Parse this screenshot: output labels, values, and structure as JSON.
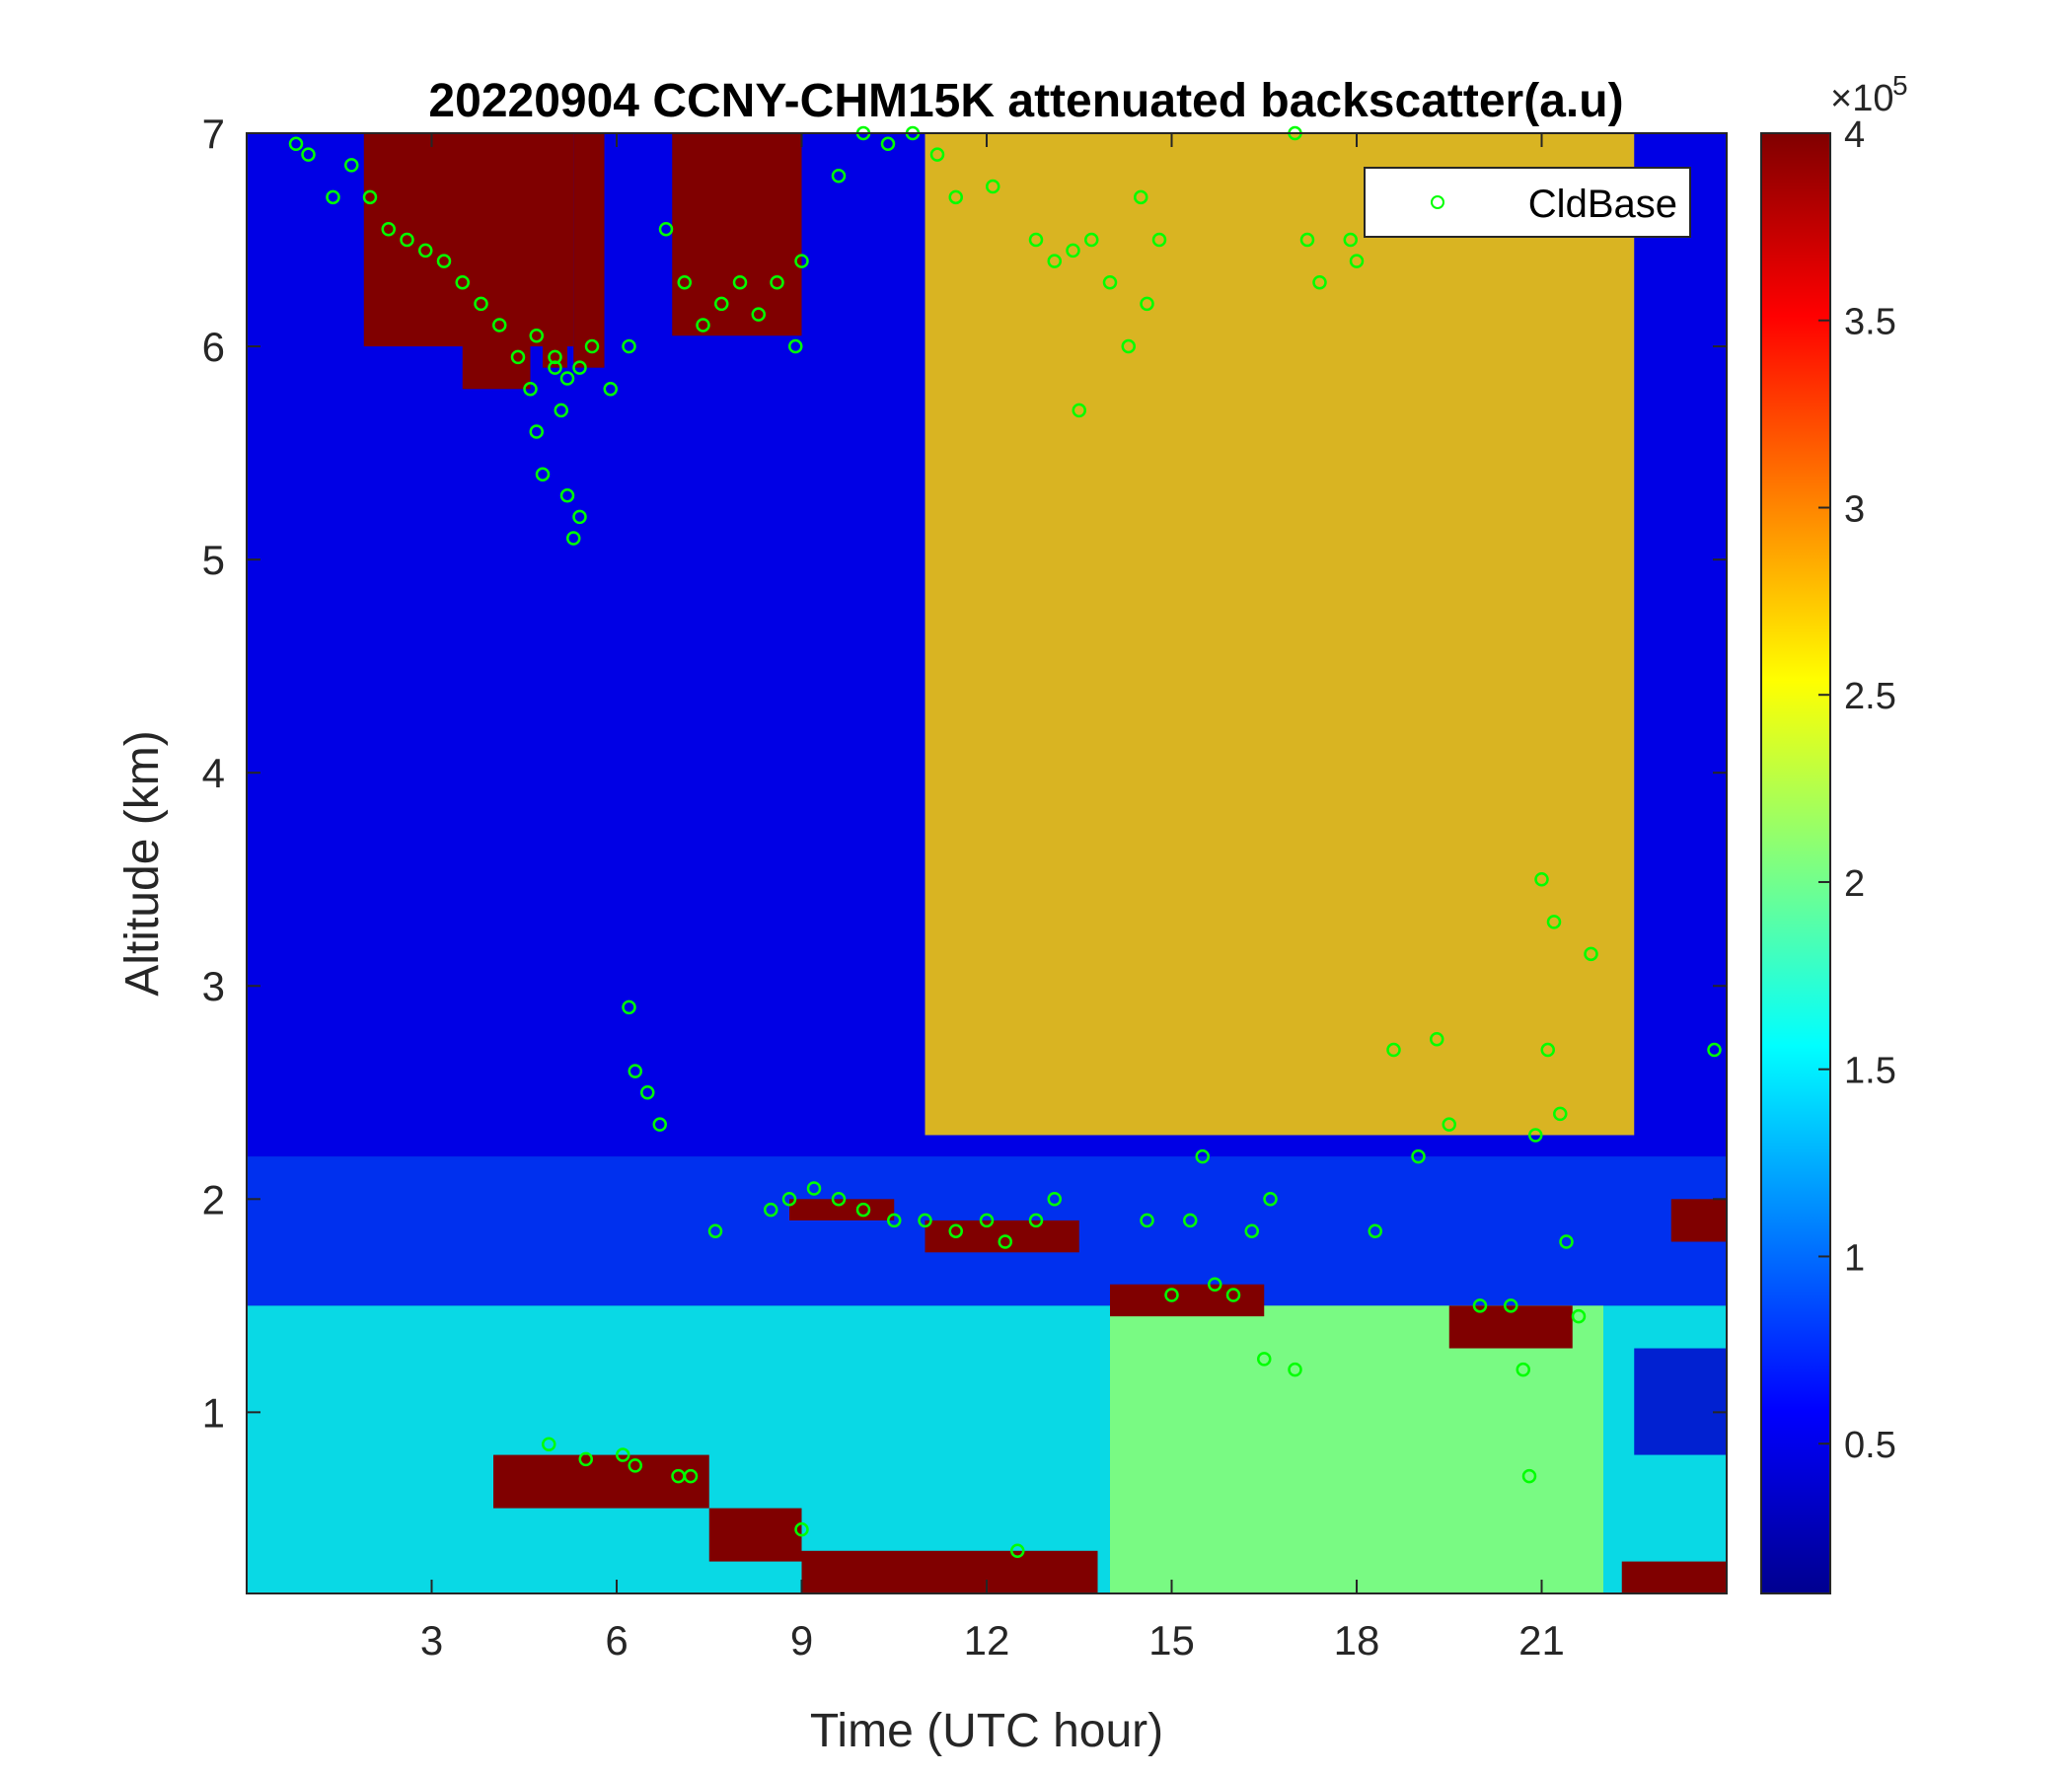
{
  "chart_data": {
    "type": "heatmap",
    "title": "20220904 CCNY-CHM15K attenuated backscatter(a.u)",
    "xlabel": "Time (UTC hour)",
    "ylabel": "Altitude (km)",
    "xlim": [
      0,
      24
    ],
    "ylim": [
      0.15,
      7
    ],
    "xticks": [
      3,
      6,
      9,
      12,
      15,
      18,
      21
    ],
    "xtick_labels": [
      "3",
      "6",
      "9",
      "12",
      "15",
      "18",
      "21"
    ],
    "yticks": [
      1,
      2,
      3,
      4,
      5,
      6,
      7
    ],
    "ytick_labels": [
      "1",
      "2",
      "3",
      "4",
      "5",
      "6",
      "7"
    ],
    "colorbar": {
      "label": "",
      "multiplier": "×10",
      "exponent": "5",
      "range": [
        0.1,
        4
      ],
      "ticks": [
        0.5,
        1,
        1.5,
        2,
        2.5,
        3,
        3.5,
        4
      ],
      "tick_labels": [
        "0.5",
        "1",
        "1.5",
        "2",
        "2.5",
        "3",
        "3.5",
        "4"
      ],
      "colormap": "jet"
    },
    "legend": {
      "placement": "top-right",
      "entries": [
        "CldBase"
      ]
    },
    "marker_color": "#00ff00",
    "background_regions": [
      {
        "t0": 0,
        "t1": 24,
        "a0": 2.2,
        "a1": 7,
        "v": 0.55
      },
      {
        "t0": 11,
        "t1": 22.5,
        "a0": 2.3,
        "a1": 7,
        "v": 2.7
      },
      {
        "t0": 0,
        "t1": 24,
        "a0": 1.5,
        "a1": 2.2,
        "v": 0.8
      },
      {
        "t0": 0,
        "t1": 24,
        "a0": 0.15,
        "a1": 1.5,
        "v": 1.6
      },
      {
        "t0": 14,
        "t1": 22,
        "a0": 0.15,
        "a1": 1.5,
        "v": 2.1
      },
      {
        "t0": 22.5,
        "t1": 24,
        "a0": 0.8,
        "a1": 1.3,
        "v": 0.4
      }
    ],
    "high_signal_regions": [
      {
        "t0": 1.9,
        "t1": 5.3,
        "a0": 6.0,
        "a1": 7.0
      },
      {
        "t0": 3.5,
        "t1": 4.6,
        "a0": 5.8,
        "a1": 6.4
      },
      {
        "t0": 4.8,
        "t1": 5.2,
        "a0": 5.9,
        "a1": 6.2
      },
      {
        "t0": 5.3,
        "t1": 5.8,
        "a0": 5.9,
        "a1": 7.0
      },
      {
        "t0": 6.9,
        "t1": 9.0,
        "a0": 6.05,
        "a1": 7.0
      },
      {
        "t0": 4.0,
        "t1": 7.5,
        "a0": 0.55,
        "a1": 0.8
      },
      {
        "t0": 7.5,
        "t1": 9.0,
        "a0": 0.3,
        "a1": 0.55
      },
      {
        "t0": 9.0,
        "t1": 13.8,
        "a0": 0.15,
        "a1": 0.35
      },
      {
        "t0": 8.8,
        "t1": 10.5,
        "a0": 1.9,
        "a1": 2.0
      },
      {
        "t0": 11.0,
        "t1": 13.5,
        "a0": 1.75,
        "a1": 1.9
      },
      {
        "t0": 14.0,
        "t1": 16.5,
        "a0": 1.45,
        "a1": 1.6
      },
      {
        "t0": 19.5,
        "t1": 21.5,
        "a0": 1.3,
        "a1": 1.5
      },
      {
        "t0": 23.1,
        "t1": 24,
        "a0": 1.8,
        "a1": 2.0
      },
      {
        "t0": 22.3,
        "t1": 24,
        "a0": 0.15,
        "a1": 0.3
      }
    ],
    "cloud_base_series": [
      {
        "name": "CldBase",
        "t": [
          0.8,
          1.0,
          1.4,
          1.7,
          2.0,
          2.3,
          2.6,
          2.9,
          3.2,
          3.5,
          3.8,
          4.1,
          4.4,
          4.7,
          5.0,
          5.2,
          5.4,
          5.6,
          5.9,
          6.2
        ],
        "alt": [
          6.95,
          6.9,
          6.7,
          6.85,
          6.7,
          6.55,
          6.5,
          6.45,
          6.4,
          6.3,
          6.2,
          6.1,
          5.95,
          6.05,
          5.95,
          5.85,
          5.9,
          6.0,
          5.8,
          6.0
        ]
      },
      {
        "name": "CldBase",
        "t": [
          4.6,
          4.7,
          4.8,
          5.0,
          5.1,
          5.2,
          5.3,
          5.4
        ],
        "alt": [
          5.8,
          5.6,
          5.4,
          5.9,
          5.7,
          5.3,
          5.1,
          5.2
        ]
      },
      {
        "name": "CldBase",
        "t": [
          6.8,
          7.1,
          7.4,
          7.7,
          8.0,
          8.3,
          8.6,
          8.9,
          9.0
        ],
        "alt": [
          6.55,
          6.3,
          6.1,
          6.2,
          6.3,
          6.15,
          6.3,
          6.0,
          6.4
        ]
      },
      {
        "name": "CldBase",
        "t": [
          9.6,
          10.0,
          10.4,
          10.8,
          11.2,
          11.5,
          12.1
        ],
        "alt": [
          6.8,
          7.0,
          6.95,
          7.0,
          6.9,
          6.7,
          6.75
        ]
      },
      {
        "name": "CldBase",
        "t": [
          12.8,
          13.1,
          13.4,
          13.5,
          13.7,
          14.0,
          14.3,
          14.5,
          14.6,
          14.8
        ],
        "alt": [
          6.5,
          6.4,
          6.45,
          5.7,
          6.5,
          6.3,
          6.0,
          6.7,
          6.2,
          6.5
        ]
      },
      {
        "name": "CldBase",
        "t": [
          17.0,
          17.2,
          17.4,
          17.9,
          18.0
        ],
        "alt": [
          7.0,
          6.5,
          6.3,
          6.5,
          6.4
        ]
      },
      {
        "name": "CldBase",
        "t": [
          6.2,
          6.3,
          6.5,
          6.7
        ],
        "alt": [
          2.9,
          2.6,
          2.5,
          2.35
        ]
      },
      {
        "name": "CldBase",
        "t": [
          7.6,
          8.5,
          8.8,
          9.2,
          9.6,
          10.0,
          10.5,
          11.0,
          11.5,
          12.0,
          12.3,
          12.8,
          13.1
        ],
        "alt": [
          1.85,
          1.95,
          2.0,
          2.05,
          2.0,
          1.95,
          1.9,
          1.9,
          1.85,
          1.9,
          1.8,
          1.9,
          2.0
        ]
      },
      {
        "name": "CldBase",
        "t": [
          14.6,
          15.0,
          15.3,
          15.5,
          15.7,
          16.0,
          16.3,
          16.6
        ],
        "alt": [
          1.9,
          1.55,
          1.9,
          2.2,
          1.6,
          1.55,
          1.85,
          2.0
        ]
      },
      {
        "name": "CldBase",
        "t": [
          16.5,
          17.0,
          18.3,
          18.6,
          19.0,
          19.3,
          19.5
        ],
        "alt": [
          1.25,
          1.2,
          1.85,
          2.7,
          2.2,
          2.75,
          2.35
        ]
      },
      {
        "name": "CldBase",
        "t": [
          20.0,
          20.5,
          20.7,
          20.8,
          20.9,
          21.0,
          21.1,
          21.2,
          21.3,
          21.4,
          21.6,
          21.8,
          23.8
        ],
        "alt": [
          1.5,
          1.5,
          1.2,
          0.7,
          2.3,
          3.5,
          2.7,
          3.3,
          2.4,
          1.8,
          1.45,
          3.15,
          2.7
        ]
      },
      {
        "name": "CldBase",
        "t": [
          4.9,
          5.5,
          6.1,
          6.3,
          7.0,
          7.2,
          9.0,
          12.5
        ],
        "alt": [
          0.85,
          0.78,
          0.8,
          0.75,
          0.7,
          0.7,
          0.45,
          0.35
        ]
      }
    ]
  }
}
